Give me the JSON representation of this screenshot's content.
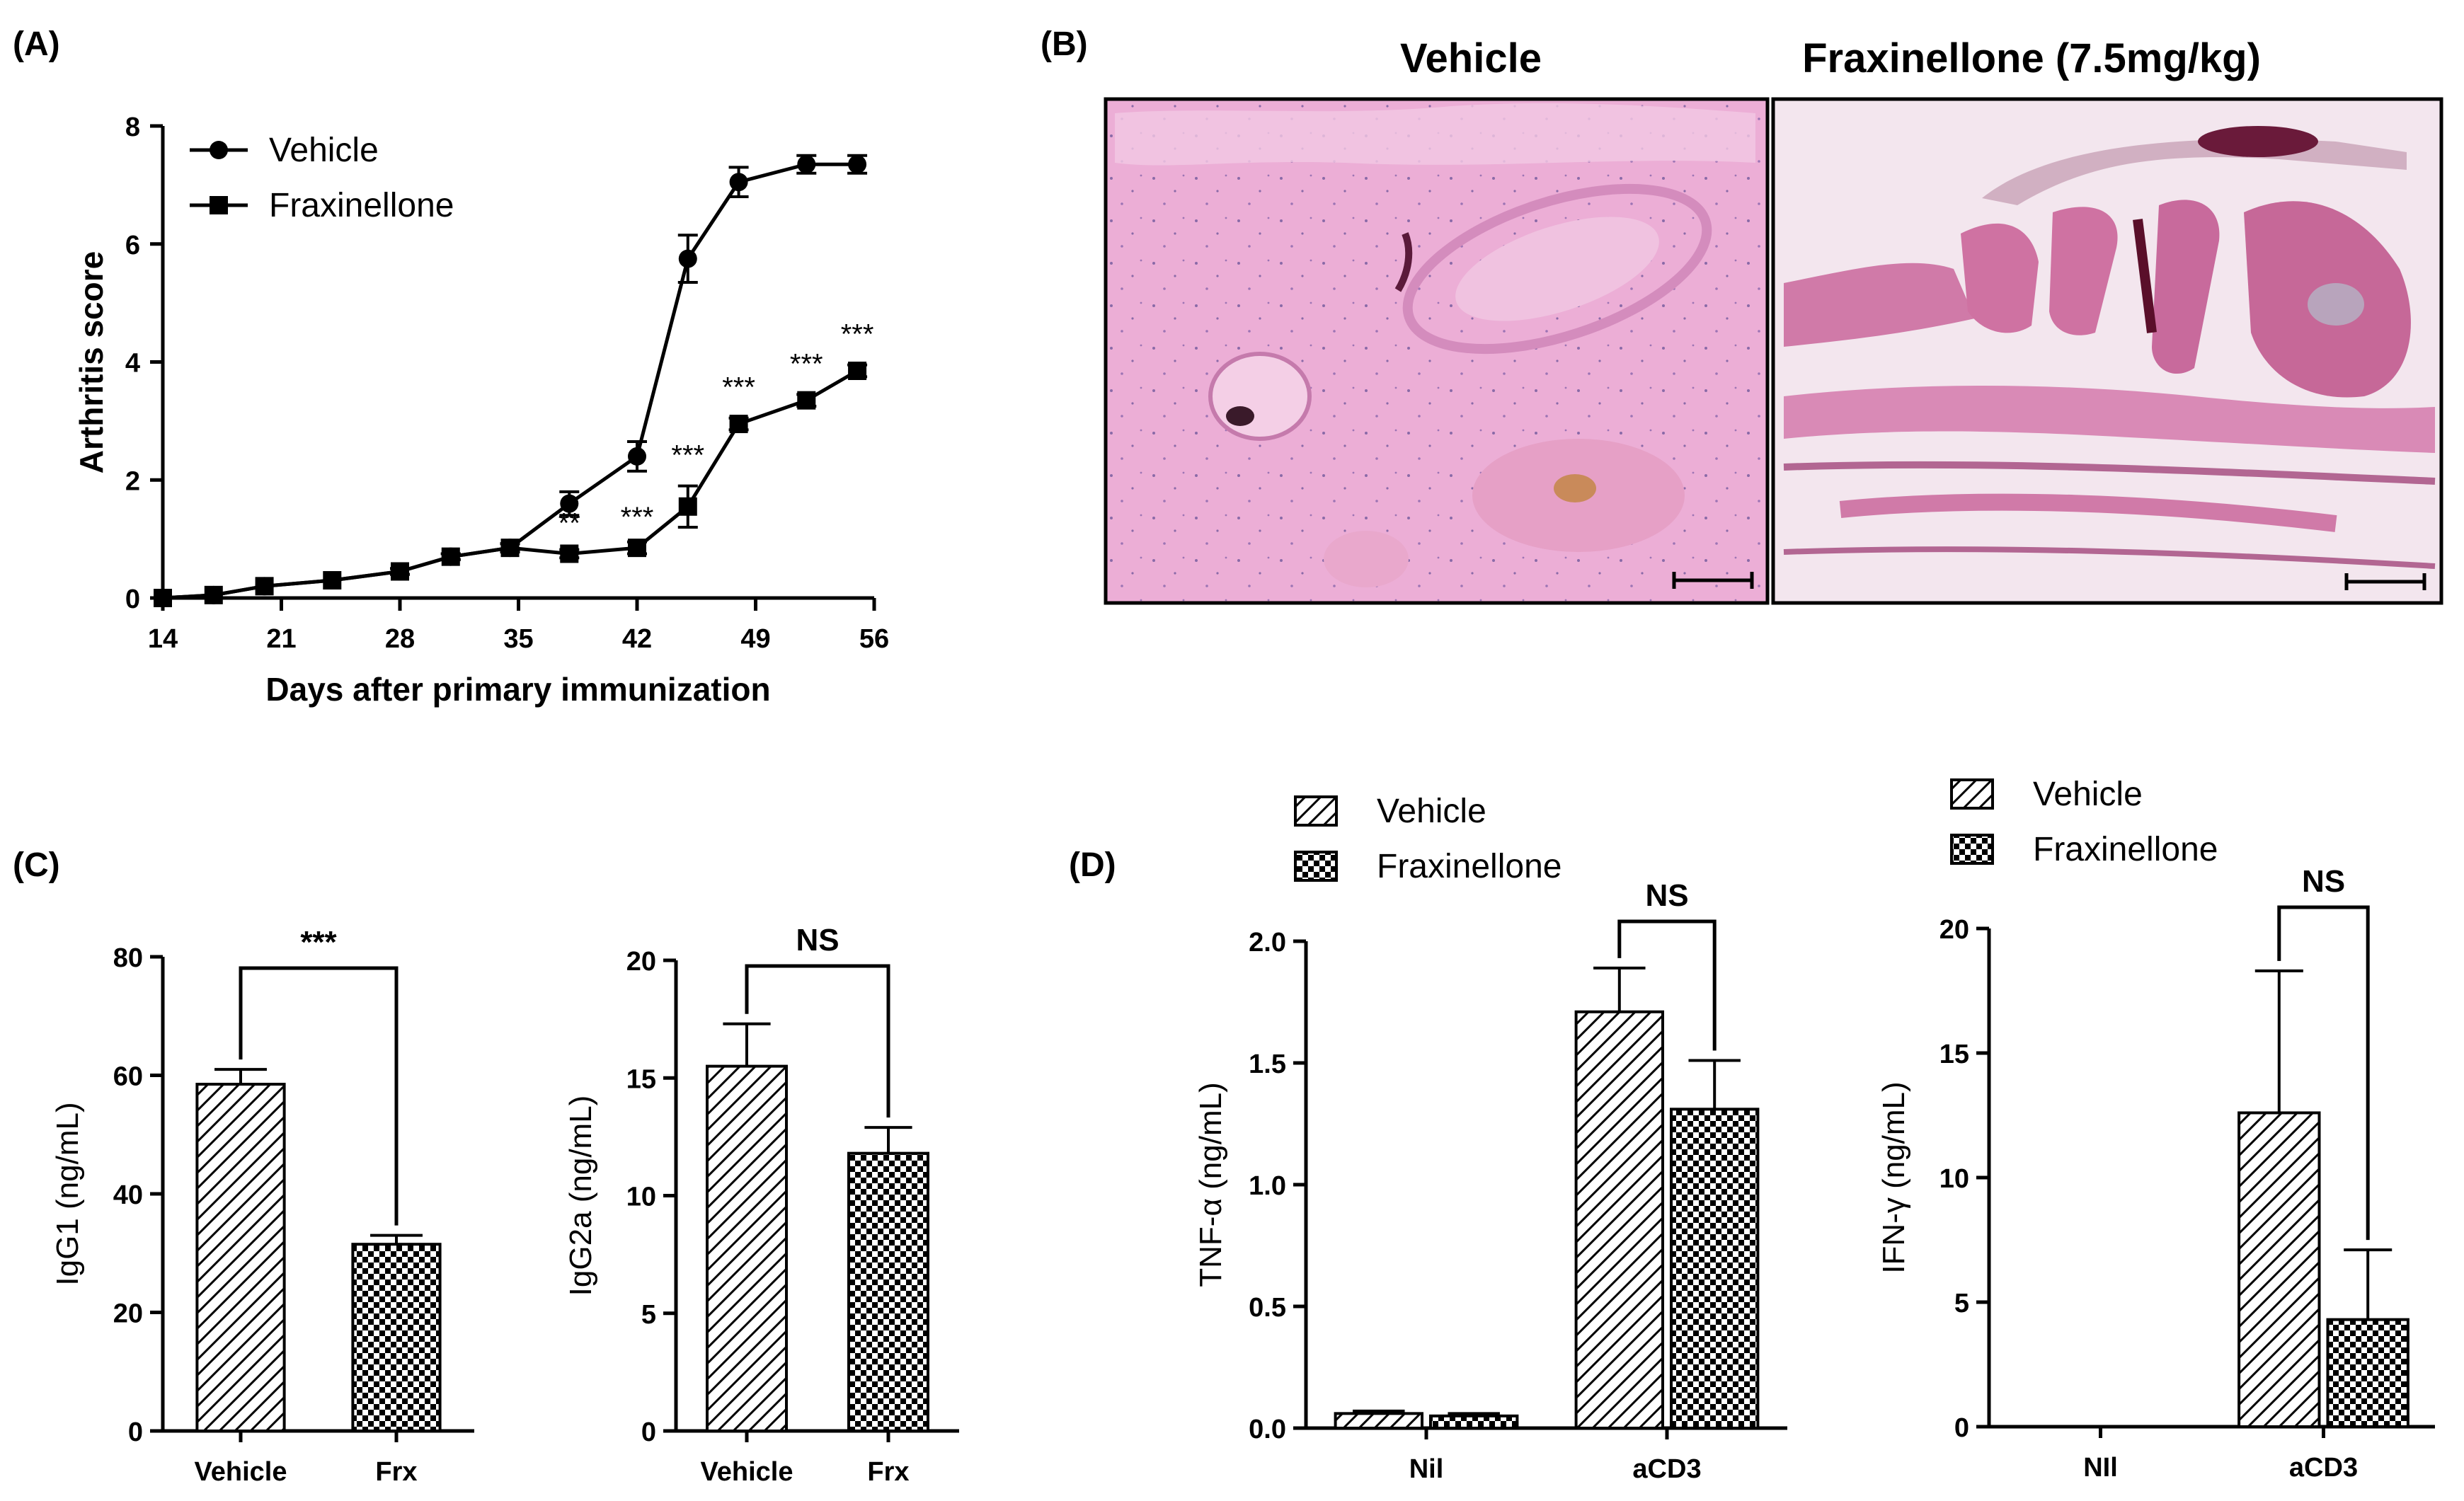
{
  "panels": {
    "a": "(A)",
    "b": "(B)",
    "c": "(C)",
    "d": "(D)"
  },
  "histology": {
    "left_title": "Vehicle",
    "right_title": "Fraxinellone (7.5mg/kg)",
    "colors": {
      "vehicle_tissue": "#ecaed6",
      "frx_tissue": "#d07aa8",
      "frx_bg": "#f3e6ee"
    }
  },
  "colors": {
    "line": "#000000",
    "vehicle_fill": "hatch-diagonal",
    "frx_fill": "checkerboard"
  },
  "chart_data": [
    {
      "id": "A",
      "type": "line",
      "xlabel": "Days after primary immunization",
      "ylabel": "Arthritis score",
      "xlim": [
        14,
        56
      ],
      "ylim": [
        0,
        8
      ],
      "xticks": [
        "14",
        "21",
        "28",
        "35",
        "42",
        "49",
        "56"
      ],
      "yticks": [
        "0",
        "2",
        "4",
        "6",
        "8"
      ],
      "legend": [
        "Vehicle",
        "Fraxinellone"
      ],
      "legend_position": "top-left",
      "series": [
        {
          "name": "Vehicle",
          "marker": "circle",
          "x": [
            14,
            17,
            20,
            24,
            28,
            31,
            34.5,
            38,
            42,
            45,
            48,
            52,
            55
          ],
          "y": [
            0,
            0.05,
            0.2,
            0.3,
            0.45,
            0.7,
            0.85,
            1.6,
            2.4,
            5.75,
            7.05,
            7.35,
            7.35
          ],
          "err": [
            0,
            0,
            0,
            0,
            0.05,
            0.05,
            0.07,
            0.2,
            0.25,
            0.4,
            0.25,
            0.15,
            0.15
          ]
        },
        {
          "name": "Fraxinellone",
          "marker": "square",
          "x": [
            14,
            17,
            20,
            24,
            28,
            31,
            34.5,
            38,
            42,
            45,
            48,
            52,
            55
          ],
          "y": [
            0,
            0.05,
            0.2,
            0.3,
            0.45,
            0.7,
            0.85,
            0.75,
            0.85,
            1.55,
            2.95,
            3.35,
            3.85
          ],
          "err": [
            0,
            0,
            0,
            0,
            0.05,
            0.05,
            0.07,
            0.07,
            0.1,
            0.35,
            0.1,
            0.1,
            0.1
          ]
        }
      ],
      "annotations": [
        {
          "x": 38,
          "y": 0.75,
          "text": "**"
        },
        {
          "x": 42,
          "y": 0.85,
          "text": "***"
        },
        {
          "x": 45,
          "y": 1.9,
          "text": "***"
        },
        {
          "x": 48,
          "y": 3.05,
          "text": "***"
        },
        {
          "x": 52,
          "y": 3.45,
          "text": "***"
        },
        {
          "x": 55,
          "y": 3.95,
          "text": "***"
        }
      ]
    },
    {
      "id": "C1",
      "type": "bar",
      "ylabel": "IgG1 (ng/mL)",
      "categories": [
        "Vehicle",
        "Frx"
      ],
      "values": [
        58.5,
        31.5
      ],
      "err": [
        2.5,
        1.5
      ],
      "ylim": [
        0,
        80
      ],
      "yticks": [
        "0",
        "20",
        "40",
        "60",
        "80"
      ],
      "significance": "***"
    },
    {
      "id": "C2",
      "type": "bar",
      "ylabel": "IgG2a (ng/mL)",
      "categories": [
        "Vehicle",
        "Frx"
      ],
      "values": [
        15.5,
        11.8
      ],
      "err": [
        1.8,
        1.1
      ],
      "ylim": [
        0,
        20
      ],
      "yticks": [
        "0",
        "5",
        "10",
        "15",
        "20"
      ],
      "significance": "NS"
    },
    {
      "id": "D1",
      "type": "bar",
      "ylabel": "TNF-α (ng/mL)",
      "categories": [
        "Nil",
        "aCD3"
      ],
      "legend": [
        "Vehicle",
        "Fraxinellone"
      ],
      "series": [
        {
          "name": "Vehicle",
          "values": [
            0.06,
            1.71
          ],
          "err": [
            0.01,
            0.18
          ]
        },
        {
          "name": "Fraxinellone",
          "values": [
            0.05,
            1.31
          ],
          "err": [
            0.01,
            0.2
          ]
        }
      ],
      "ylim": [
        0,
        2.0
      ],
      "yticks": [
        "0.0",
        "0.5",
        "1.0",
        "1.5",
        "2.0"
      ],
      "significance": "NS"
    },
    {
      "id": "D2",
      "type": "bar",
      "ylabel": "IFN-γ (ng/mL)",
      "categories": [
        "NIl",
        "aCD3"
      ],
      "legend": [
        "Vehicle",
        "Fraxinellone"
      ],
      "series": [
        {
          "name": "Vehicle",
          "values": [
            0,
            12.6
          ],
          "err": [
            0,
            5.7
          ]
        },
        {
          "name": "Fraxinellone",
          "values": [
            0,
            4.3
          ],
          "err": [
            0,
            2.8
          ]
        }
      ],
      "ylim": [
        0,
        20
      ],
      "yticks": [
        "0",
        "5",
        "10",
        "15",
        "20"
      ],
      "significance": "NS"
    }
  ]
}
